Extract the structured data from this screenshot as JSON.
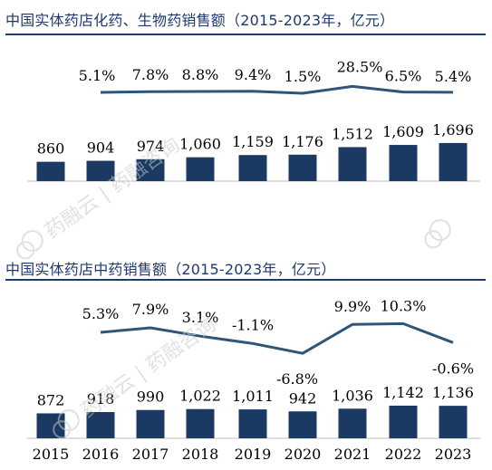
{
  "colors": {
    "bar": "#1b3a63",
    "line": "#2f5577",
    "title": "#1f3a6e",
    "text": "#000000",
    "watermark": "#c9c9c9"
  },
  "watermark": {
    "text": "药融云 | 药融咨询",
    "icon": "cloud-logo-icon"
  },
  "chart_data": [
    {
      "type": "bar",
      "title": "中国实体药店化药、生物药销售额（2015-2023年，亿元）",
      "categories": [
        "2015",
        "2016",
        "2017",
        "2018",
        "2019",
        "2020",
        "2021",
        "2022",
        "2023"
      ],
      "values": [
        860,
        904,
        974,
        1060,
        1159,
        1176,
        1512,
        1609,
        1696
      ],
      "value_labels": [
        "860",
        "904",
        "974",
        "1,060",
        "1,159",
        "1,176",
        "1,512",
        "1,609",
        "1,696"
      ],
      "growth": {
        "type": "line",
        "x": [
          "2016",
          "2017",
          "2018",
          "2019",
          "2020",
          "2021",
          "2022",
          "2023"
        ],
        "values": [
          5.1,
          7.8,
          8.8,
          9.4,
          1.5,
          28.5,
          6.5,
          5.4
        ],
        "labels": [
          "5.1%",
          "7.8%",
          "8.8%",
          "9.4%",
          "1.5%",
          "28.5%",
          "6.5%",
          "5.4%"
        ]
      },
      "ylim": [
        0,
        1800
      ],
      "grid": false,
      "legend": "none"
    },
    {
      "type": "bar",
      "title": "中国实体药店中药销售额（2015-2023年，亿元）",
      "categories": [
        "2015",
        "2016",
        "2017",
        "2018",
        "2019",
        "2020",
        "2021",
        "2022",
        "2023"
      ],
      "values": [
        872,
        918,
        990,
        1022,
        1011,
        942,
        1036,
        1142,
        1136
      ],
      "value_labels": [
        "872",
        "918",
        "990",
        "1,022",
        "1,011",
        "942",
        "1,036",
        "1,142",
        "1,136"
      ],
      "growth": {
        "type": "line",
        "x": [
          "2016",
          "2017",
          "2018",
          "2019",
          "2020",
          "2021",
          "2022",
          "2023"
        ],
        "values": [
          5.3,
          7.9,
          3.1,
          -1.1,
          -6.8,
          9.9,
          10.3,
          -0.6
        ],
        "labels": [
          "5.3%",
          "7.9%",
          "3.1%",
          "-1.1%",
          "-6.8%",
          "9.9%",
          "10.3%",
          "-0.6%"
        ]
      },
      "ylim": [
        0,
        1200
      ],
      "grid": false,
      "legend": "none"
    }
  ]
}
